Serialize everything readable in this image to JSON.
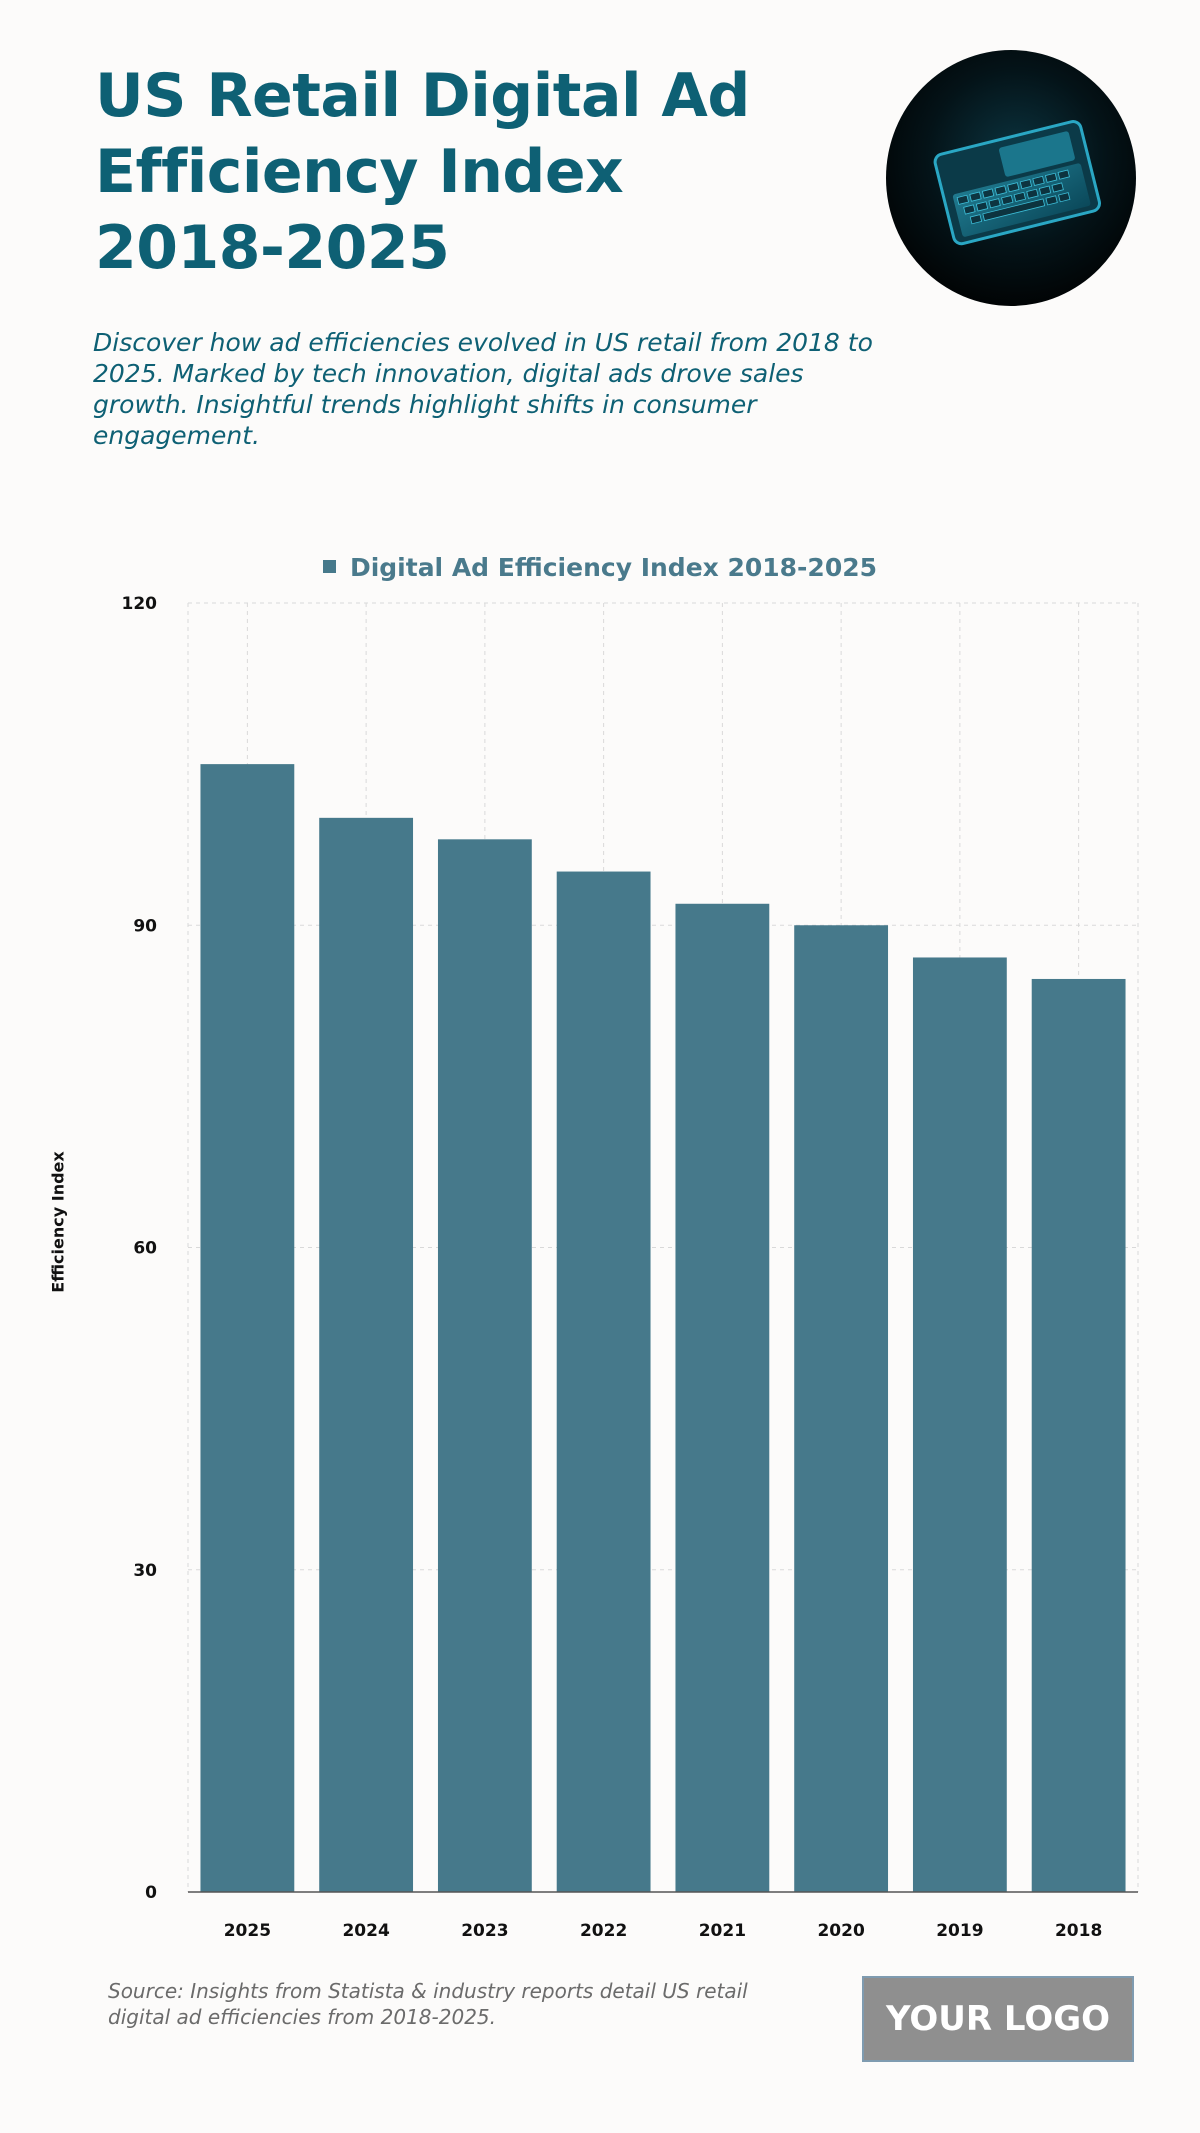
{
  "header": {
    "title": "US Retail Digital Ad Efficiency Index 2018-2025",
    "subtitle": "Discover how ad efficiencies evolved in US retail from 2018 to 2025. Marked by tech innovation, digital ads drove sales growth. Insightful trends highlight shifts in consumer engagement."
  },
  "hero_image": {
    "icon": "laptop-keyboard-image"
  },
  "colors": {
    "bar": "#46798b",
    "title": "#0e6074",
    "grid": "#d9d9d9",
    "background": "#fcfbfa"
  },
  "chart_data": {
    "type": "bar",
    "legend": "Digital Ad Efficiency Index 2018-2025",
    "legend_position": "top-center",
    "categories": [
      "2025",
      "2024",
      "2023",
      "2022",
      "2021",
      "2020",
      "2019",
      "2018"
    ],
    "series": [
      {
        "name": "Digital Ad Efficiency Index 2018-2025",
        "values": [
          105,
          100,
          98,
          95,
          92,
          90,
          87,
          85
        ]
      }
    ],
    "xlabel": "",
    "ylabel": "Efficiency Index",
    "ylim": [
      0,
      120
    ],
    "yticks": [
      "0",
      "30",
      "60",
      "90",
      "120"
    ],
    "grid": true
  },
  "footer": {
    "source": "Source: Insights from Statista & industry reports detail US retail digital ad efficiencies from 2018-2025.",
    "logo": "YOUR LOGO"
  }
}
